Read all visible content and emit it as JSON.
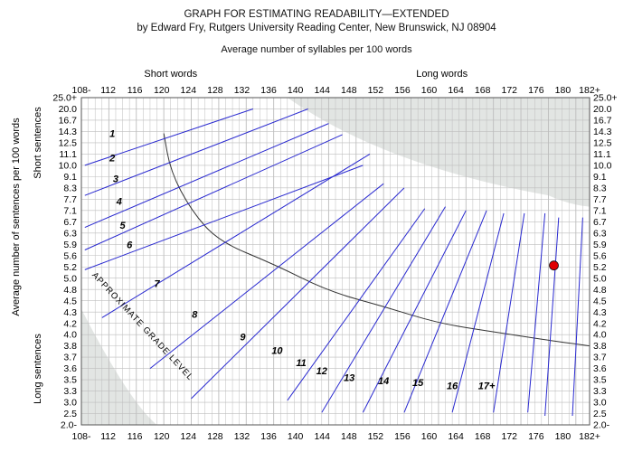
{
  "chart_data": {
    "type": "line",
    "title": "GRAPH FOR ESTIMATING READABILITY—EXTENDED",
    "subtitle": "by Edward Fry, Rutgers University Reading Center, New Brunswick, NJ 08904",
    "xlabel": "Average number of syllables per 100 words",
    "ylabel": "Average number of sentences per 100 words",
    "x_region_labels": [
      "Short words",
      "Long words"
    ],
    "y_region_labels": [
      "Short sentences",
      "Long sentences"
    ],
    "curve_label": "APPROXIMATE GRADE LEVEL",
    "xlim": [
      108,
      182
    ],
    "x_ticks": [
      "108-",
      "112",
      "116",
      "120",
      "124",
      "128",
      "132",
      "136",
      "140",
      "144",
      "148",
      "152",
      "156",
      "160",
      "164",
      "168",
      "172",
      "176",
      "180",
      "182+"
    ],
    "y_ticks": [
      "25.0+",
      "20.0",
      "16.7",
      "14.3",
      "12.5",
      "11.1",
      "10.0",
      "9.1",
      "8.3",
      "7.7",
      "7.1",
      "6.7",
      "6.3",
      "5.9",
      "5.6",
      "5.2",
      "5.0",
      "4.8",
      "4.5",
      "4.3",
      "4.2",
      "4.0",
      "3.8",
      "3.7",
      "3.6",
      "3.5",
      "3.3",
      "3.0",
      "2.5",
      "2.0-"
    ],
    "grade_lines": [
      {
        "name": "1",
        "p1": [
          108.5,
          10.0
        ],
        "p2": [
          133,
          20.0
        ]
      },
      {
        "name": "2",
        "p1": [
          108.5,
          7.9
        ],
        "p2": [
          141,
          20.0
        ]
      },
      {
        "name": "3",
        "p1": [
          108.5,
          6.5
        ],
        "p2": [
          144,
          16.0
        ]
      },
      {
        "name": "4",
        "p1": [
          108.5,
          5.75
        ],
        "p2": [
          146,
          13.8
        ]
      },
      {
        "name": "5",
        "p1": [
          108.5,
          5.15
        ],
        "p2": [
          149,
          10.0
        ]
      },
      {
        "name": "6",
        "p1": [
          111,
          4.25
        ],
        "p2": [
          150,
          11.1
        ]
      },
      {
        "name": "7",
        "p1": [
          118,
          3.6
        ],
        "p2": [
          152,
          8.6
        ]
      },
      {
        "name": "8",
        "p1": [
          124,
          3.1
        ],
        "p2": [
          155,
          8.3
        ]
      },
      {
        "name": "9",
        "p1": [
          138,
          3.05
        ],
        "p2": [
          158,
          7.2
        ]
      },
      {
        "name": "10",
        "p1": [
          143,
          2.55
        ],
        "p2": [
          161,
          7.3
        ]
      },
      {
        "name": "11",
        "p1": [
          149,
          2.55
        ],
        "p2": [
          164,
          7.1
        ]
      },
      {
        "name": "12",
        "p1": [
          155,
          2.55
        ],
        "p2": [
          167,
          7.1
        ]
      },
      {
        "name": "13",
        "p1": [
          162,
          2.55
        ],
        "p2": [
          169.5,
          7.0
        ]
      },
      {
        "name": "14",
        "p1": [
          168,
          2.55
        ],
        "p2": [
          172.5,
          7.0
        ]
      },
      {
        "name": "15",
        "p1": [
          173,
          2.55
        ],
        "p2": [
          175.5,
          7.0
        ]
      },
      {
        "name": "16",
        "p1": [
          175.5,
          2.4
        ],
        "p2": [
          177.5,
          6.85
        ]
      },
      {
        "name": "17+",
        "p1": [
          179.5,
          2.4
        ],
        "p2": [
          181,
          6.85
        ]
      }
    ],
    "grade_label_positions": [
      [
        112.5,
        13.4
      ],
      [
        112.5,
        10.4
      ],
      [
        113,
        8.7
      ],
      [
        113.5,
        7.4
      ],
      [
        114,
        6.45
      ],
      [
        115,
        5.8
      ],
      [
        119,
        4.84
      ],
      [
        124.5,
        4.25
      ],
      [
        131.5,
        3.9
      ],
      [
        136.5,
        3.73
      ],
      [
        140,
        3.62
      ],
      [
        143,
        3.55
      ],
      [
        147,
        3.48
      ],
      [
        152,
        3.42
      ],
      [
        157,
        3.39
      ],
      [
        162,
        3.33
      ],
      [
        167,
        3.33
      ]
    ],
    "boundary_curve": [
      [
        120,
        14.0
      ],
      [
        121,
        9.5
      ],
      [
        124,
        7.1
      ],
      [
        128,
        6.0
      ],
      [
        136,
        5.3
      ],
      [
        144,
        4.75
      ],
      [
        152,
        4.4
      ],
      [
        160,
        4.2
      ],
      [
        168,
        4.05
      ],
      [
        176,
        3.9
      ],
      [
        182,
        3.8
      ]
    ],
    "point": {
      "x": 176.8,
      "y": 5.25,
      "color": "#e00000"
    },
    "colors": {
      "grade_line": "#2a2ad0",
      "curve": "#333333",
      "grid": "#bdbdbd",
      "shade": "#e2e5e3",
      "frame": "#555555"
    },
    "grid": true
  }
}
